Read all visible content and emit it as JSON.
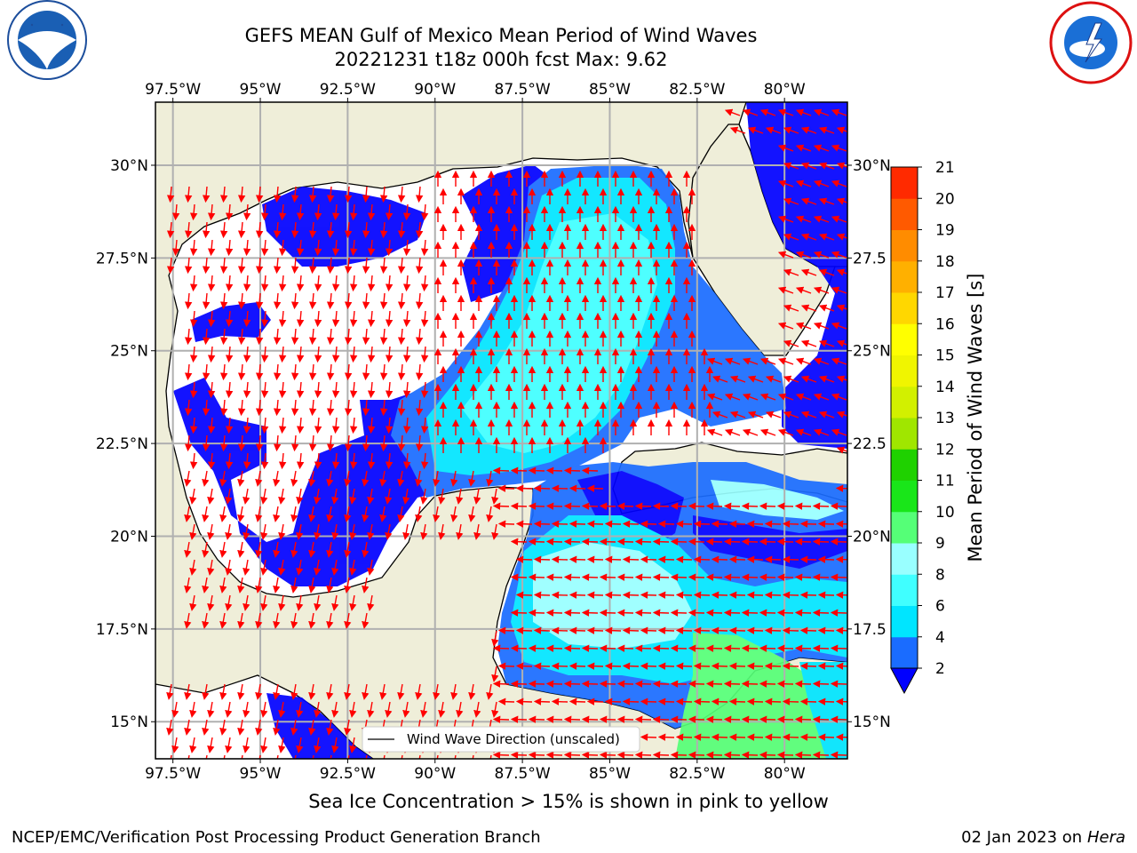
{
  "header": {
    "title_line1": "GEFS MEAN Gulf of Mexico Mean Period of Wind Waves",
    "title_line2": "20221231 t18z 000h fcst   Max: 9.62"
  },
  "logos": {
    "left": "noaa-logo",
    "right": "national-weather-service-logo"
  },
  "chart_data": {
    "type": "heatmap",
    "title": "GEFS MEAN Gulf of Mexico Mean Period of Wind Waves",
    "subtitle": "20221231 t18z 000h fcst   Max: 9.62",
    "lon_ticks": [
      "97.5°W",
      "95°W",
      "92.5°W",
      "90°W",
      "87.5°W",
      "85°W",
      "82.5°W",
      "80°W"
    ],
    "lon_values": [
      -97.5,
      -95,
      -92.5,
      -90,
      -87.5,
      -85,
      -82.5,
      -80
    ],
    "lat_ticks": [
      "30°N",
      "27.5°N",
      "25°N",
      "22.5°N",
      "20°N",
      "17.5°N",
      "15°N"
    ],
    "lat_values": [
      30,
      27.5,
      25,
      22.5,
      20,
      17.5,
      15
    ],
    "right_lat_ticks": [
      "30°N",
      "27.5",
      "25°N",
      "22.5",
      "20°N",
      "17.5",
      "15°N"
    ],
    "xlim": [
      -98,
      -78.2
    ],
    "ylim": [
      14,
      31.7
    ],
    "grid": true,
    "colorbar": {
      "label": "Mean Period of Wind Waves [s]",
      "tick_labels": [
        "2",
        "4",
        "6",
        "8",
        "9",
        "10",
        "11",
        "12",
        "13",
        "14",
        "15",
        "16",
        "17",
        "18",
        "19",
        "20",
        "21"
      ],
      "bounds": [
        2,
        4,
        6,
        8,
        9,
        10,
        11,
        12,
        13,
        14,
        15,
        16,
        17,
        18,
        19,
        20,
        21
      ],
      "colors": [
        "#1a6cff",
        "#00e5ff",
        "#40ffff",
        "#99ffff",
        "#55ff77",
        "#19e619",
        "#1fd100",
        "#a0e600",
        "#d2f000",
        "#f0f500",
        "#ffff00",
        "#ffd700",
        "#ffb000",
        "#ff8c00",
        "#ff5a00",
        "#ff2a00"
      ],
      "under_color": "#0000ff"
    },
    "legend": {
      "label": "Wind Wave Direction (unscaled)",
      "placement": "bottom-center"
    },
    "colors": {
      "land": "#efeed9",
      "arrow": "#ff0000",
      "grid": "#b0b0b0"
    }
  },
  "footer": {
    "note": "Sea Ice Concentration > 15% is shown in pink to yellow",
    "credit": "NCEP/EMC/Verification Post Processing Product Generation Branch",
    "date": "02 Jan 2023 on ",
    "machine": "Hera"
  }
}
